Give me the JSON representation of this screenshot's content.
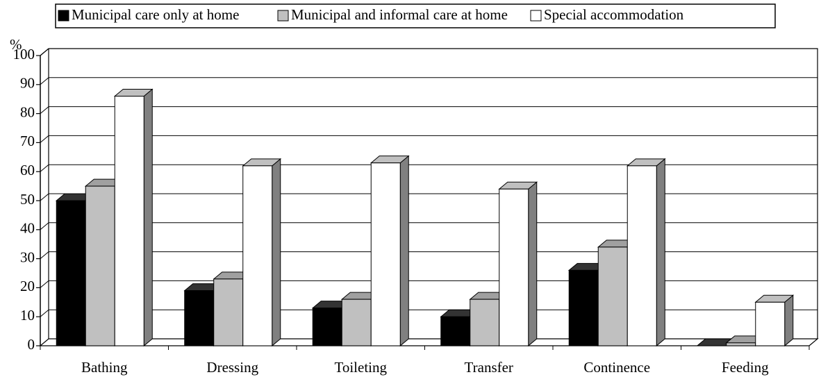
{
  "chart_data": {
    "type": "bar3d",
    "ylabel": "%",
    "categories": [
      "Bathing",
      "Dressing",
      "Toileting",
      "Transfer",
      "Continence",
      "Feeding"
    ],
    "series": [
      {
        "name": "Municipal care only at home",
        "color": "#000000",
        "values": [
          50,
          19,
          13,
          10,
          26,
          0
        ]
      },
      {
        "name": "Municipal and informal care at home",
        "color": "#c0c0c0",
        "values": [
          55,
          23,
          16,
          16,
          34,
          1
        ]
      },
      {
        "name": "Special accommodation",
        "color": "#ffffff",
        "values": [
          86,
          62,
          63,
          54,
          62,
          15
        ]
      }
    ],
    "ylim": [
      0,
      100
    ],
    "yticks": [
      0,
      10,
      20,
      30,
      40,
      50,
      60,
      70,
      80,
      90,
      100
    ],
    "grid": true,
    "legend": "top"
  }
}
